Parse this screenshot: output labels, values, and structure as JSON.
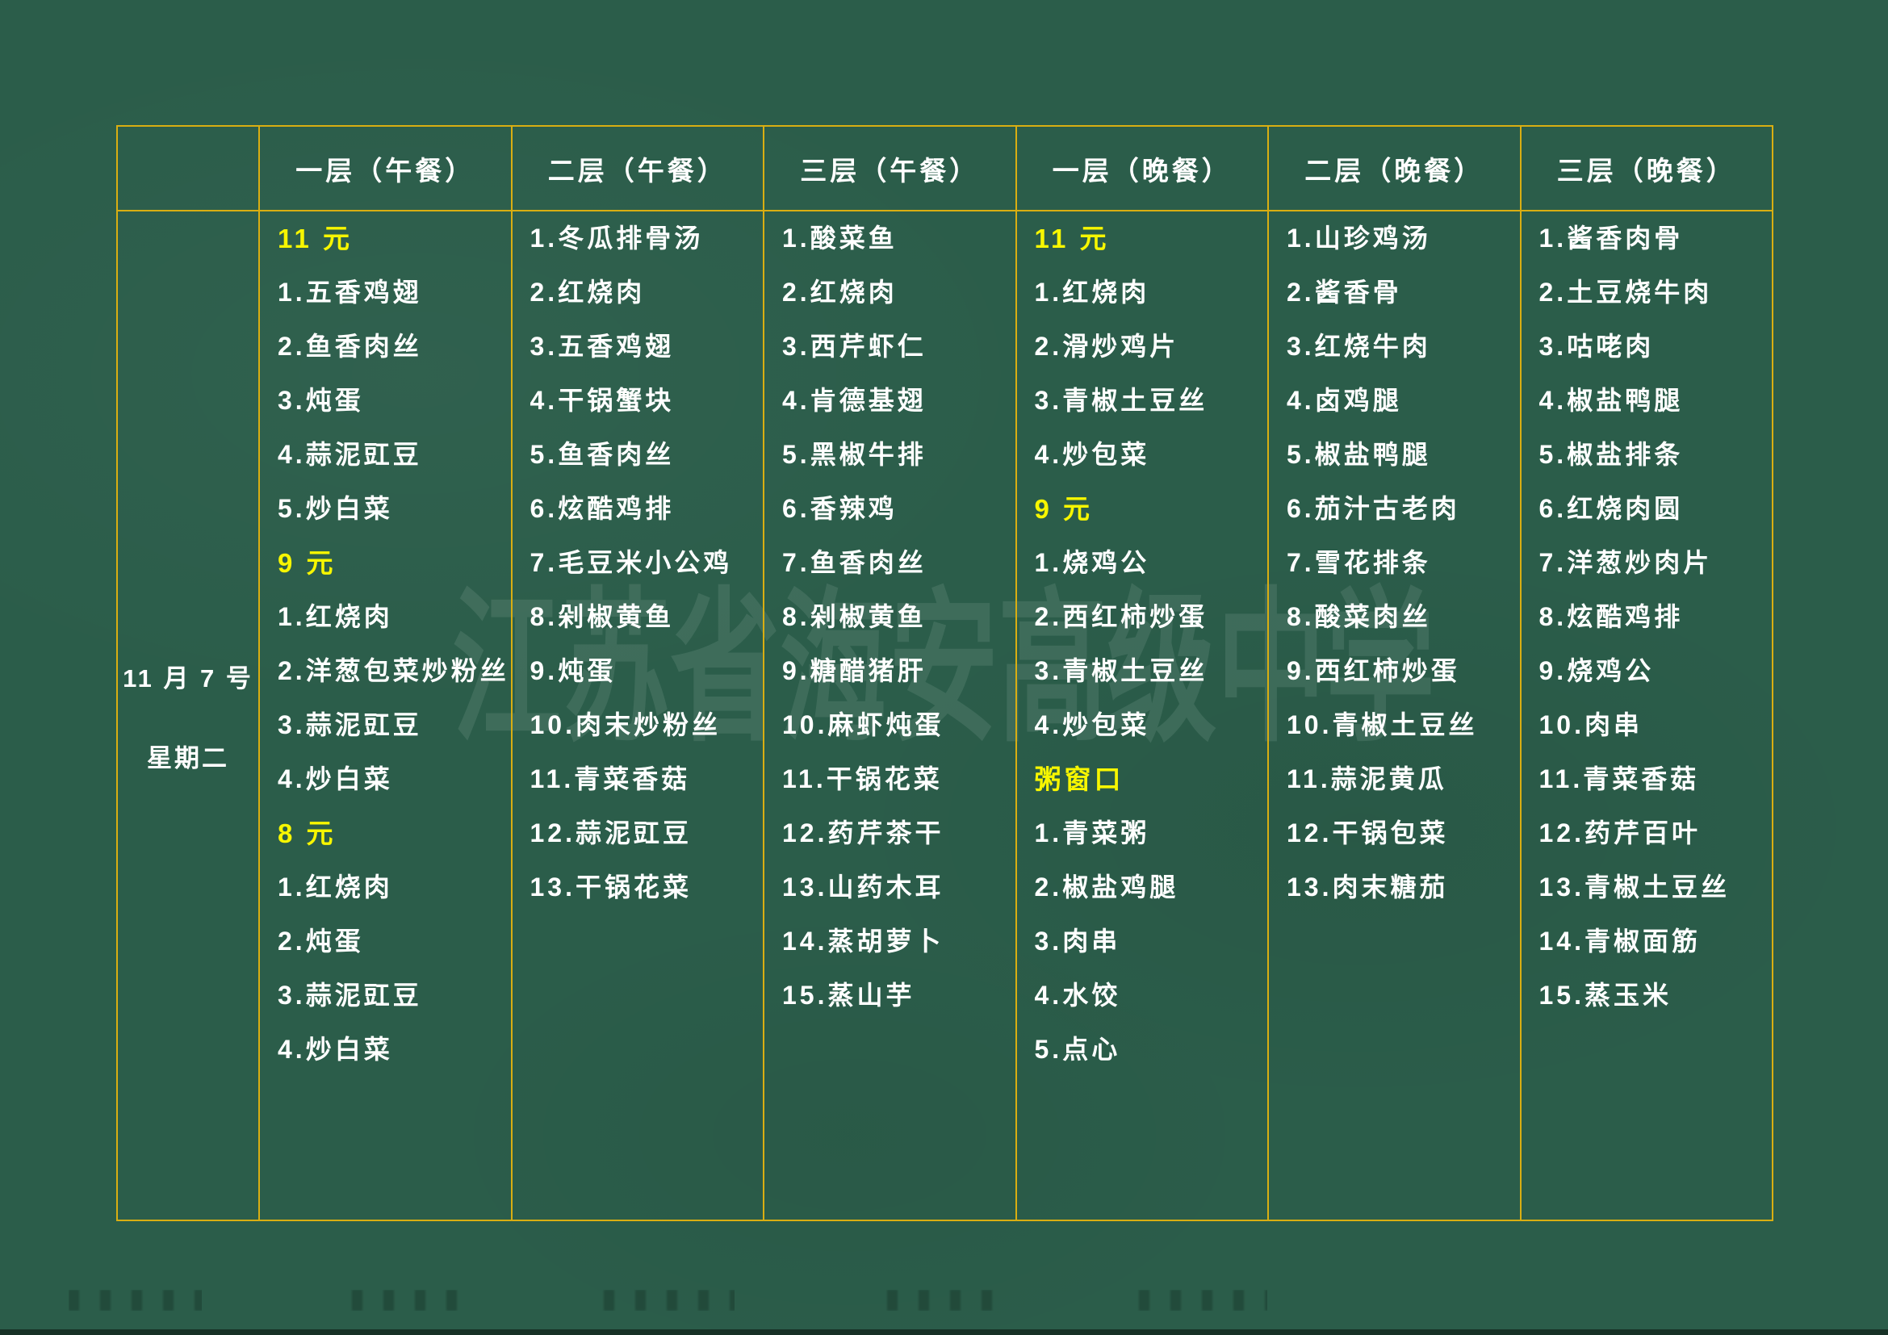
{
  "board": {
    "background_color": "#2b5d4a",
    "grid_color": "#d9ae12",
    "item_color": "#ffffff",
    "price_color": "#f7f600",
    "watermark_text": "江苏省海安高级中学"
  },
  "date_cell": {
    "date": "11 月 7 号",
    "weekday": "星期二"
  },
  "columns": [
    {
      "header": "一层（午餐）",
      "items": [
        {
          "text": "11 元",
          "highlight": true
        },
        {
          "text": "1.五香鸡翅"
        },
        {
          "text": "2.鱼香肉丝"
        },
        {
          "text": "3.炖蛋"
        },
        {
          "text": "4.蒜泥豇豆"
        },
        {
          "text": "5.炒白菜"
        },
        {
          "text": "9 元",
          "highlight": true
        },
        {
          "text": "1.红烧肉"
        },
        {
          "text": "2.洋葱包菜炒粉丝"
        },
        {
          "text": "3.蒜泥豇豆"
        },
        {
          "text": "4.炒白菜"
        },
        {
          "text": "8 元",
          "highlight": true
        },
        {
          "text": "1.红烧肉"
        },
        {
          "text": "2.炖蛋"
        },
        {
          "text": "3.蒜泥豇豆"
        },
        {
          "text": "4.炒白菜"
        }
      ]
    },
    {
      "header": "二层（午餐）",
      "items": [
        {
          "text": "1.冬瓜排骨汤"
        },
        {
          "text": "2.红烧肉"
        },
        {
          "text": "3.五香鸡翅"
        },
        {
          "text": "4.干锅蟹块"
        },
        {
          "text": "5.鱼香肉丝"
        },
        {
          "text": "6.炫酷鸡排"
        },
        {
          "text": "7.毛豆米小公鸡"
        },
        {
          "text": "8.剁椒黄鱼"
        },
        {
          "text": "9.炖蛋"
        },
        {
          "text": "10.肉末炒粉丝"
        },
        {
          "text": "11.青菜香菇"
        },
        {
          "text": "12.蒜泥豇豆"
        },
        {
          "text": "13.干锅花菜"
        }
      ]
    },
    {
      "header": "三层（午餐）",
      "items": [
        {
          "text": "1.酸菜鱼"
        },
        {
          "text": "2.红烧肉"
        },
        {
          "text": "3.西芹虾仁"
        },
        {
          "text": "4.肯德基翅"
        },
        {
          "text": "5.黑椒牛排"
        },
        {
          "text": "6.香辣鸡"
        },
        {
          "text": "7.鱼香肉丝"
        },
        {
          "text": "8.剁椒黄鱼"
        },
        {
          "text": "9.糖醋猪肝"
        },
        {
          "text": "10.麻虾炖蛋"
        },
        {
          "text": "11.干锅花菜"
        },
        {
          "text": "12.药芹茶干"
        },
        {
          "text": "13.山药木耳"
        },
        {
          "text": "14.蒸胡萝卜"
        },
        {
          "text": "15.蒸山芋"
        }
      ]
    },
    {
      "header": "一层（晚餐）",
      "items": [
        {
          "text": "11 元",
          "highlight": true
        },
        {
          "text": "1.红烧肉"
        },
        {
          "text": "2.滑炒鸡片"
        },
        {
          "text": "3.青椒土豆丝"
        },
        {
          "text": "4.炒包菜"
        },
        {
          "text": "9 元",
          "highlight": true
        },
        {
          "text": "1.烧鸡公"
        },
        {
          "text": "2.西红柿炒蛋"
        },
        {
          "text": "3.青椒土豆丝"
        },
        {
          "text": "4.炒包菜"
        },
        {
          "text": "粥窗口",
          "highlight": true
        },
        {
          "text": "1.青菜粥"
        },
        {
          "text": "2.椒盐鸡腿"
        },
        {
          "text": "3.肉串"
        },
        {
          "text": "4.水饺"
        },
        {
          "text": "5.点心"
        }
      ]
    },
    {
      "header": "二层（晚餐）",
      "items": [
        {
          "text": "1.山珍鸡汤"
        },
        {
          "text": "2.酱香骨"
        },
        {
          "text": "3.红烧牛肉"
        },
        {
          "text": "4.卤鸡腿"
        },
        {
          "text": "5.椒盐鸭腿"
        },
        {
          "text": "6.茄汁古老肉"
        },
        {
          "text": "7.雪花排条"
        },
        {
          "text": "8.酸菜肉丝"
        },
        {
          "text": "9.西红柿炒蛋"
        },
        {
          "text": "10.青椒土豆丝"
        },
        {
          "text": "11.蒜泥黄瓜"
        },
        {
          "text": "12.干锅包菜"
        },
        {
          "text": "13.肉末糖茄"
        }
      ]
    },
    {
      "header": "三层（晚餐）",
      "items": [
        {
          "text": "1.酱香肉骨"
        },
        {
          "text": "2.土豆烧牛肉"
        },
        {
          "text": "3.咕咾肉"
        },
        {
          "text": "4.椒盐鸭腿"
        },
        {
          "text": "5.椒盐排条"
        },
        {
          "text": "6.红烧肉圆"
        },
        {
          "text": "7.洋葱炒肉片"
        },
        {
          "text": "8.炫酷鸡排"
        },
        {
          "text": "9.烧鸡公"
        },
        {
          "text": "10.肉串"
        },
        {
          "text": "11.青菜香菇"
        },
        {
          "text": "12.药芹百叶"
        },
        {
          "text": "13.青椒土豆丝"
        },
        {
          "text": "14.青椒面筋"
        },
        {
          "text": "15.蒸玉米"
        }
      ]
    }
  ]
}
